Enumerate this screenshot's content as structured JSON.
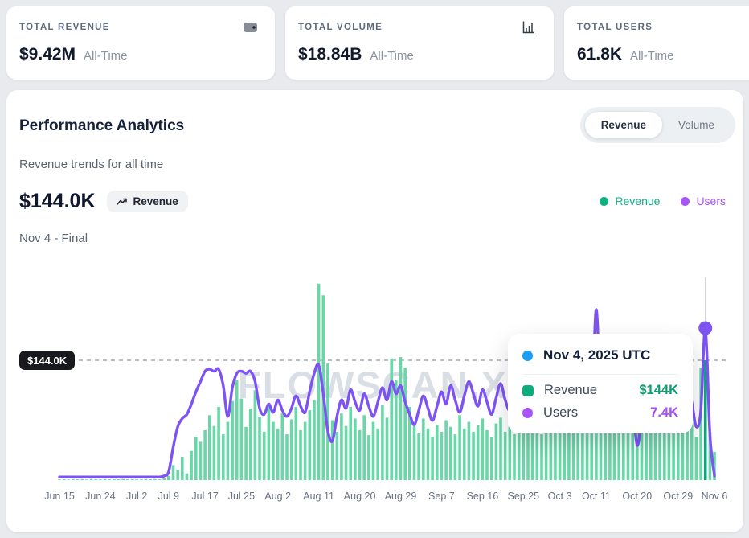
{
  "stats_cards": [
    {
      "label": "TOTAL REVENUE",
      "value": "$9.42M",
      "period": "All-Time",
      "icon": "wallet-icon"
    },
    {
      "label": "TOTAL VOLUME",
      "value": "$18.84B",
      "period": "All-Time",
      "icon": "bar-chart-icon"
    },
    {
      "label": "TOTAL USERS",
      "value": "61.8K",
      "period": "All-Time",
      "icon": "users-icon"
    }
  ],
  "panel": {
    "title": "Performance Analytics",
    "subtitle": "Revenue trends for all time",
    "toggle": {
      "options": [
        "Revenue",
        "Volume"
      ],
      "active": "Revenue"
    },
    "headline_value": "$144.0K",
    "headline_badge": "Revenue",
    "period_label": "Nov 4 - Final",
    "legend": [
      {
        "label": "Revenue",
        "color": "#10b181"
      },
      {
        "label": "Users",
        "color": "#a855f7"
      }
    ],
    "threshold_label": "$144.0K",
    "watermark": "FLOWSCAN.XYZ",
    "tooltip": {
      "date": "Nov 4, 2025 UTC",
      "date_dot_color": "#1b9df3",
      "rows": [
        {
          "label": "Revenue",
          "value": "$144K",
          "color": "#0eac7c",
          "value_color": "#0b9e72"
        },
        {
          "label": "Users",
          "value": "7.4K",
          "color": "#a855f7",
          "value_color": "#a64df5"
        }
      ]
    }
  },
  "chart_data": {
    "type": "bar+line",
    "x_unit": "day",
    "x_range": [
      "Jun 15",
      "Nov 6"
    ],
    "x_ticks": [
      {
        "index": 0,
        "label": "Jun 15"
      },
      {
        "index": 9,
        "label": "Jun 24"
      },
      {
        "index": 17,
        "label": "Jul 2"
      },
      {
        "index": 24,
        "label": "Jul 9"
      },
      {
        "index": 32,
        "label": "Jul 17"
      },
      {
        "index": 40,
        "label": "Jul 25"
      },
      {
        "index": 48,
        "label": "Aug 2"
      },
      {
        "index": 57,
        "label": "Aug 11"
      },
      {
        "index": 66,
        "label": "Aug 20"
      },
      {
        "index": 75,
        "label": "Aug 29"
      },
      {
        "index": 84,
        "label": "Sep 7"
      },
      {
        "index": 93,
        "label": "Sep 16"
      },
      {
        "index": 102,
        "label": "Sep 25"
      },
      {
        "index": 110,
        "label": "Oct 3"
      },
      {
        "index": 118,
        "label": "Oct 11"
      },
      {
        "index": 127,
        "label": "Oct 20"
      },
      {
        "index": 136,
        "label": "Oct 29"
      },
      {
        "index": 144,
        "label": "Nov 6"
      }
    ],
    "threshold": {
      "value": 144,
      "label": "$144.0K"
    },
    "highlight_index": 142,
    "highlight_bar_color": "#0ca878",
    "crosshair_color": "#c6ccd4",
    "ylim_revenue_k": [
      0,
      250
    ],
    "ylim_users_k": [
      0,
      9.4
    ],
    "series": [
      {
        "name": "Revenue",
        "type": "bar",
        "unit": "K USD",
        "color": "#69d7a8",
        "values": [
          0.8,
          1.0,
          0.7,
          1.2,
          0.9,
          1.1,
          0.8,
          1.3,
          1.0,
          0.9,
          1.2,
          0.8,
          1.1,
          1.0,
          1.4,
          0.9,
          1.2,
          1.1,
          0.8,
          1.3,
          1.0,
          1.2,
          0.9,
          2,
          5,
          18,
          12,
          28,
          8,
          35,
          52,
          46,
          60,
          78,
          65,
          88,
          55,
          70,
          95,
          120,
          98,
          64,
          86,
          108,
          76,
          58,
          92,
          70,
          62,
          80,
          55,
          73,
          88,
          60,
          70,
          84,
          96,
          236,
          222,
          140,
          72,
          58,
          80,
          65,
          88,
          74,
          60,
          78,
          54,
          70,
          62,
          90,
          75,
          146,
          120,
          148,
          135,
          88,
          68,
          56,
          74,
          62,
          52,
          66,
          58,
          72,
          64,
          55,
          78,
          62,
          70,
          58,
          66,
          74,
          60,
          52,
          68,
          75,
          58,
          64,
          55,
          70,
          62,
          58,
          72,
          65,
          55,
          68,
          60,
          74,
          66,
          58,
          72,
          64,
          78,
          68,
          60,
          74,
          82,
          70,
          64,
          76,
          68,
          80,
          72,
          64,
          78,
          84,
          72,
          88,
          76,
          68,
          82,
          92,
          78,
          88,
          94,
          82,
          98,
          88,
          52,
          135,
          144,
          58,
          34
        ]
      },
      {
        "name": "Users",
        "type": "line",
        "unit": "K",
        "color": "#7d53f3",
        "values": [
          0.15,
          0.15,
          0.15,
          0.15,
          0.15,
          0.15,
          0.15,
          0.15,
          0.15,
          0.15,
          0.15,
          0.15,
          0.15,
          0.15,
          0.15,
          0.15,
          0.15,
          0.15,
          0.15,
          0.15,
          0.15,
          0.15,
          0.15,
          0.2,
          0.4,
          1.6,
          2.6,
          3.0,
          3.2,
          3.7,
          4.3,
          4.8,
          5.3,
          5.4,
          5.3,
          5.4,
          4.6,
          3.1,
          4.5,
          5.2,
          5.3,
          5.2,
          5.3,
          4.8,
          3.5,
          3.2,
          3.7,
          3.3,
          3.9,
          3.4,
          3.1,
          3.5,
          4.1,
          3.6,
          3.3,
          4.3,
          5.2,
          5.6,
          4.2,
          2.4,
          1.9,
          3.1,
          3.9,
          3.5,
          4.4,
          3.8,
          3.4,
          4.2,
          3.6,
          3.1,
          3.8,
          4.5,
          3.9,
          4.8,
          4.2,
          4.6,
          3.8,
          3.2,
          2.7,
          3.4,
          4.1,
          3.5,
          2.9,
          3.6,
          4.3,
          3.7,
          4.6,
          3.9,
          3.3,
          4.1,
          4.8,
          4.2,
          3.6,
          4.4,
          3.8,
          3.2,
          4.0,
          4.7,
          3.9,
          3.4,
          4.2,
          3.7,
          4.5,
          3.8,
          3.3,
          4.1,
          4.6,
          3.9,
          3.5,
          4.3,
          3.8,
          4.4,
          3.7,
          3.2,
          4.0,
          4.5,
          3.8,
          3.4,
          8.3,
          3.6,
          3.1,
          3.9,
          4.4,
          3.7,
          3.3,
          4.1,
          3.6,
          1.7,
          2.9,
          3.8,
          4.3,
          3.6,
          4.2,
          3.7,
          4.4,
          3.9,
          4.1,
          3.5,
          4.3,
          3.8,
          2.6,
          3.4,
          7.4,
          2.2,
          0.2
        ]
      }
    ]
  }
}
